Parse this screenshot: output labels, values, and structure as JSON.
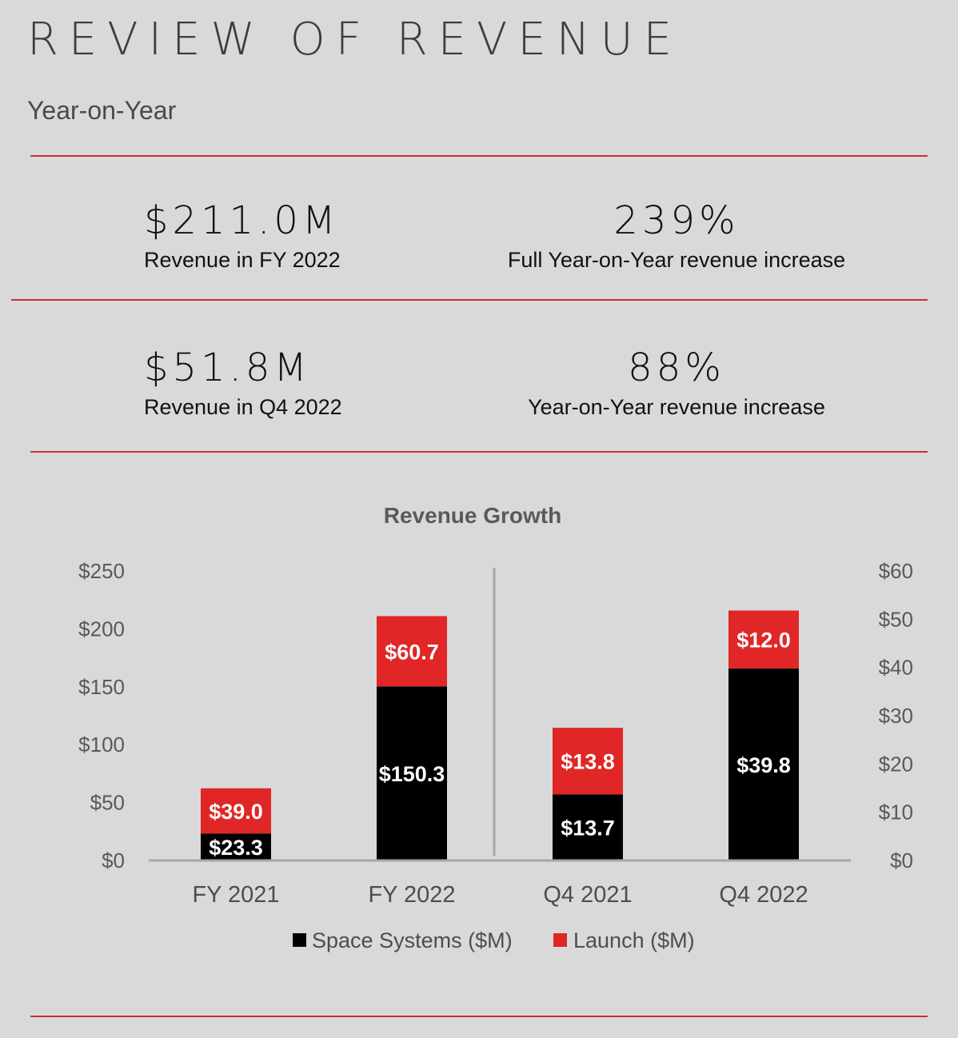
{
  "header": {
    "title": "REVIEW OF REVENUE",
    "subtitle": "Year-on-Year"
  },
  "kpis": [
    {
      "value": "$211.0M",
      "label": "Revenue in FY 2022"
    },
    {
      "value": "239%",
      "label": "Full Year-on-Year revenue increase"
    },
    {
      "value": "$51.8M",
      "label": "Revenue in Q4 2022"
    },
    {
      "value": "88%",
      "label": "Year-on-Year revenue increase"
    }
  ],
  "colors": {
    "accent_rule": "#c8312f",
    "space_systems": "#000000",
    "launch": "#e02626",
    "background": "#d9d9d9"
  },
  "chart_data": {
    "type": "bar",
    "stacked": true,
    "title": "Revenue Growth",
    "categories": [
      "FY 2021",
      "FY 2022",
      "Q4 2021",
      "Q4 2022"
    ],
    "series": [
      {
        "name": "Space Systems ($M)",
        "values": [
          23.3,
          150.3,
          13.7,
          39.8
        ],
        "labels": [
          "$23.3",
          "$150.3",
          "$13.7",
          "$39.8"
        ]
      },
      {
        "name": "Launch ($M)",
        "values": [
          39.0,
          60.7,
          13.8,
          12.0
        ],
        "labels": [
          "$39.0",
          "$60.7",
          "$13.8",
          "$12.0"
        ]
      }
    ],
    "y_left": {
      "min": 0,
      "max": 250,
      "ticks": [
        "$0",
        "$50",
        "$100",
        "$150",
        "$200",
        "$250"
      ],
      "applies_to": [
        "FY 2021",
        "FY 2022"
      ]
    },
    "y_right": {
      "min": 0,
      "max": 60,
      "ticks": [
        "$0",
        "$10",
        "$20",
        "$30",
        "$40",
        "$50",
        "$60"
      ],
      "applies_to": [
        "Q4 2021",
        "Q4 2022"
      ]
    },
    "grid": false,
    "legend": "bottom"
  }
}
